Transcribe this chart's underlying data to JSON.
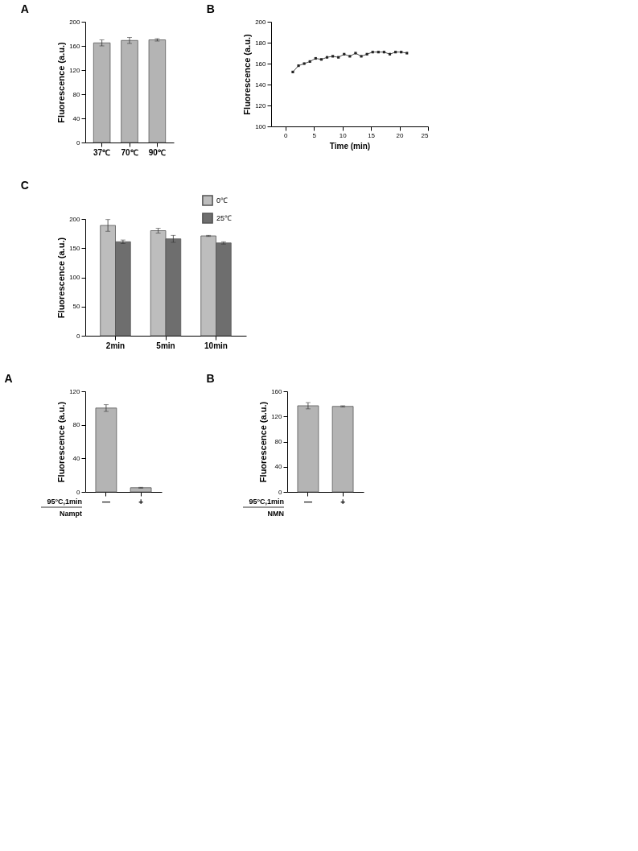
{
  "chart_data": [
    {
      "type": "bar",
      "title": "A",
      "ylabel": "Fluorescence (a.u.)",
      "categories": [
        "37℃",
        "70℃",
        "90℃"
      ],
      "series": [
        {
          "color": "#b4b4b4",
          "values": [
            165,
            169,
            170
          ],
          "errors": [
            5,
            5,
            2
          ]
        }
      ],
      "ylim": [
        0,
        200
      ],
      "yticks": [
        0,
        40,
        80,
        120,
        160,
        200
      ],
      "grid": false,
      "legend": false
    },
    {
      "type": "line",
      "title": "B",
      "xlabel": "Time (min)",
      "ylabel": "Fluorescence (a.u.)",
      "x": [
        1.3,
        2.3,
        3.3,
        4.3,
        5.3,
        6.3,
        7.3,
        8.3,
        9.3,
        10.3,
        11.3,
        12.3,
        13.3,
        14.3,
        15.3,
        16.3,
        17.3,
        18.3,
        19.3,
        20.3,
        21.3
      ],
      "series": [
        {
          "color": "#222222",
          "values": [
            152,
            158,
            160,
            162,
            165,
            164,
            166,
            167,
            166,
            169,
            167,
            170,
            167,
            169,
            171,
            171,
            171,
            169,
            171,
            171,
            170
          ]
        }
      ],
      "xlim": [
        -2.5,
        25
      ],
      "xticks": [
        0,
        5,
        10,
        15,
        20,
        25
      ],
      "ylim": [
        100,
        200
      ],
      "yticks": [
        100,
        120,
        140,
        160,
        180,
        200
      ],
      "marker": "square",
      "line_style": "solid",
      "grid": false
    },
    {
      "type": "bar",
      "title": "C",
      "ylabel": "Fluorescence (a.u.)",
      "categories": [
        "2min",
        "5min",
        "10min"
      ],
      "series": [
        {
          "name": "0℃",
          "color": "#bdbdbd",
          "values": [
            189,
            180,
            171
          ],
          "errors": [
            10,
            4,
            1
          ]
        },
        {
          "name": "25℃",
          "color": "#6e6e6e",
          "values": [
            161,
            166,
            159
          ],
          "errors": [
            3,
            6,
            2
          ]
        }
      ],
      "ylim": [
        0,
        200
      ],
      "yticks": [
        0,
        50,
        100,
        150,
        200
      ],
      "grid": false,
      "legend": "top right"
    },
    {
      "type": "bar",
      "title": "A",
      "ylabel": "Fluorescence (a.u.)",
      "xlabel": "Nampt",
      "annotations": [
        "95°C,1min"
      ],
      "categories": [
        "—",
        "+"
      ],
      "series": [
        {
          "color": "#b4b4b4",
          "values": [
            100,
            5
          ],
          "errors": [
            4,
            0.5
          ]
        }
      ],
      "ylim": [
        0,
        120
      ],
      "yticks": [
        0,
        40,
        80,
        120
      ],
      "grid": false,
      "legend": false
    },
    {
      "type": "bar",
      "title": "B",
      "ylabel": "Fluorescence (a.u.)",
      "xlabel": "NMN",
      "annotations": [
        "95°C,1min"
      ],
      "categories": [
        "—",
        "+"
      ],
      "series": [
        {
          "color": "#b4b4b4",
          "values": [
            137,
            136
          ],
          "errors": [
            5,
            1
          ]
        }
      ],
      "ylim": [
        0,
        160
      ],
      "yticks": [
        0,
        40,
        80,
        120,
        160
      ],
      "grid": false,
      "legend": false
    }
  ]
}
